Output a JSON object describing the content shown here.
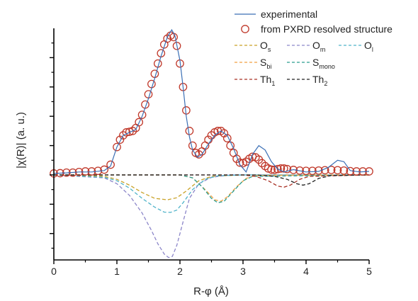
{
  "chart_data": {
    "type": "line",
    "title": "",
    "xlabel": "R-φ (Å)",
    "ylabel": "|χ(R)| (a. u.)",
    "xlim": [
      0,
      5
    ],
    "ylim": [
      -2.9,
      5.0
    ],
    "x_ticks": [
      "0",
      "1",
      "2",
      "3",
      "4",
      "5"
    ],
    "y_ticks_labeled": false,
    "grid": false,
    "legend_position": "top-right",
    "series": [
      {
        "name": "experimental",
        "style": "solid",
        "color": "#3b6fb5",
        "points": [
          [
            0,
            0.05
          ],
          [
            0.2,
            0.07
          ],
          [
            0.4,
            0.1
          ],
          [
            0.6,
            0.1
          ],
          [
            0.8,
            0.15
          ],
          [
            0.9,
            0.3
          ],
          [
            1.0,
            0.95
          ],
          [
            1.1,
            1.35
          ],
          [
            1.2,
            1.45
          ],
          [
            1.3,
            1.55
          ],
          [
            1.4,
            2.0
          ],
          [
            1.5,
            2.6
          ],
          [
            1.6,
            3.3
          ],
          [
            1.7,
            4.05
          ],
          [
            1.8,
            4.7
          ],
          [
            1.87,
            4.95
          ],
          [
            1.92,
            4.75
          ],
          [
            2.0,
            3.9
          ],
          [
            2.05,
            3.0
          ],
          [
            2.1,
            2.0
          ],
          [
            2.15,
            1.3
          ],
          [
            2.2,
            0.85
          ],
          [
            2.28,
            0.6
          ],
          [
            2.35,
            0.7
          ],
          [
            2.45,
            1.05
          ],
          [
            2.55,
            1.35
          ],
          [
            2.65,
            1.5
          ],
          [
            2.75,
            1.35
          ],
          [
            2.85,
            0.9
          ],
          [
            2.95,
            0.35
          ],
          [
            3.05,
            0.1
          ],
          [
            3.15,
            0.7
          ],
          [
            3.25,
            1.0
          ],
          [
            3.35,
            0.85
          ],
          [
            3.45,
            0.45
          ],
          [
            3.55,
            0.2
          ],
          [
            3.65,
            0.1
          ],
          [
            3.8,
            0.18
          ],
          [
            4.0,
            0.1
          ],
          [
            4.2,
            0.12
          ],
          [
            4.35,
            0.25
          ],
          [
            4.5,
            0.5
          ],
          [
            4.6,
            0.45
          ],
          [
            4.7,
            0.15
          ],
          [
            4.85,
            0.1
          ],
          [
            5.0,
            0.12
          ]
        ]
      },
      {
        "name": "from PXRD resolved structure",
        "style": "markers",
        "marker": "open-circle",
        "color": "#c0392b",
        "points": [
          [
            0.0,
            0.05
          ],
          [
            0.1,
            0.06
          ],
          [
            0.2,
            0.08
          ],
          [
            0.3,
            0.08
          ],
          [
            0.4,
            0.1
          ],
          [
            0.5,
            0.12
          ],
          [
            0.6,
            0.12
          ],
          [
            0.7,
            0.14
          ],
          [
            0.8,
            0.18
          ],
          [
            0.9,
            0.35
          ],
          [
            1.0,
            0.95
          ],
          [
            1.05,
            1.2
          ],
          [
            1.1,
            1.35
          ],
          [
            1.15,
            1.45
          ],
          [
            1.2,
            1.47
          ],
          [
            1.25,
            1.5
          ],
          [
            1.3,
            1.6
          ],
          [
            1.35,
            1.8
          ],
          [
            1.4,
            2.05
          ],
          [
            1.45,
            2.4
          ],
          [
            1.5,
            2.75
          ],
          [
            1.55,
            3.1
          ],
          [
            1.6,
            3.45
          ],
          [
            1.65,
            3.8
          ],
          [
            1.7,
            4.15
          ],
          [
            1.75,
            4.45
          ],
          [
            1.8,
            4.65
          ],
          [
            1.85,
            4.75
          ],
          [
            1.9,
            4.7
          ],
          [
            1.95,
            4.4
          ],
          [
            2.0,
            3.8
          ],
          [
            2.05,
            3.0
          ],
          [
            2.1,
            2.2
          ],
          [
            2.15,
            1.5
          ],
          [
            2.2,
            1.0
          ],
          [
            2.25,
            0.75
          ],
          [
            2.3,
            0.7
          ],
          [
            2.35,
            0.8
          ],
          [
            2.4,
            1.0
          ],
          [
            2.45,
            1.2
          ],
          [
            2.5,
            1.35
          ],
          [
            2.55,
            1.45
          ],
          [
            2.6,
            1.5
          ],
          [
            2.65,
            1.5
          ],
          [
            2.7,
            1.42
          ],
          [
            2.75,
            1.25
          ],
          [
            2.8,
            1.0
          ],
          [
            2.85,
            0.75
          ],
          [
            2.9,
            0.55
          ],
          [
            2.95,
            0.42
          ],
          [
            3.0,
            0.4
          ],
          [
            3.05,
            0.45
          ],
          [
            3.1,
            0.55
          ],
          [
            3.15,
            0.62
          ],
          [
            3.2,
            0.6
          ],
          [
            3.25,
            0.52
          ],
          [
            3.3,
            0.4
          ],
          [
            3.35,
            0.3
          ],
          [
            3.4,
            0.22
          ],
          [
            3.45,
            0.18
          ],
          [
            3.5,
            0.17
          ],
          [
            3.55,
            0.2
          ],
          [
            3.6,
            0.22
          ],
          [
            3.65,
            0.22
          ],
          [
            3.7,
            0.2
          ],
          [
            3.8,
            0.17
          ],
          [
            3.9,
            0.15
          ],
          [
            4.0,
            0.14
          ],
          [
            4.1,
            0.14
          ],
          [
            4.2,
            0.15
          ],
          [
            4.3,
            0.16
          ],
          [
            4.4,
            0.17
          ],
          [
            4.5,
            0.16
          ],
          [
            4.6,
            0.15
          ],
          [
            4.7,
            0.13
          ],
          [
            4.8,
            0.12
          ],
          [
            4.9,
            0.12
          ],
          [
            5.0,
            0.12
          ]
        ]
      },
      {
        "name": "Os",
        "label_main": "O",
        "label_sub": "s",
        "style": "dashed",
        "color": "#c9a227",
        "points": [
          [
            0,
            0
          ],
          [
            0.8,
            -0.05
          ],
          [
            1.0,
            -0.15
          ],
          [
            1.2,
            -0.35
          ],
          [
            1.4,
            -0.6
          ],
          [
            1.6,
            -0.8
          ],
          [
            1.8,
            -0.85
          ],
          [
            1.95,
            -0.78
          ],
          [
            2.1,
            -0.55
          ],
          [
            2.3,
            -0.2
          ],
          [
            2.5,
            -0.05
          ],
          [
            3.0,
            0
          ],
          [
            5.0,
            0
          ]
        ]
      },
      {
        "name": "Om",
        "label_main": "O",
        "label_sub": "m",
        "style": "dashed",
        "color": "#8c86c9",
        "points": [
          [
            0,
            0
          ],
          [
            0.8,
            -0.1
          ],
          [
            1.0,
            -0.3
          ],
          [
            1.2,
            -0.7
          ],
          [
            1.4,
            -1.3
          ],
          [
            1.55,
            -1.9
          ],
          [
            1.65,
            -2.35
          ],
          [
            1.75,
            -2.7
          ],
          [
            1.82,
            -2.82
          ],
          [
            1.88,
            -2.78
          ],
          [
            1.95,
            -2.4
          ],
          [
            2.05,
            -1.6
          ],
          [
            2.15,
            -0.8
          ],
          [
            2.3,
            -0.3
          ],
          [
            2.5,
            -0.08
          ],
          [
            2.8,
            0
          ],
          [
            5.0,
            0
          ]
        ]
      },
      {
        "name": "Ol",
        "label_main": "O",
        "label_sub": "l",
        "style": "dashed",
        "color": "#4fb3c9",
        "points": [
          [
            0,
            0
          ],
          [
            0.8,
            -0.08
          ],
          [
            1.0,
            -0.2
          ],
          [
            1.2,
            -0.45
          ],
          [
            1.4,
            -0.8
          ],
          [
            1.6,
            -1.1
          ],
          [
            1.75,
            -1.27
          ],
          [
            1.85,
            -1.28
          ],
          [
            1.95,
            -1.2
          ],
          [
            2.05,
            -0.95
          ],
          [
            2.2,
            -0.5
          ],
          [
            2.4,
            -0.15
          ],
          [
            2.6,
            -0.03
          ],
          [
            3.0,
            0
          ],
          [
            5.0,
            0
          ]
        ]
      },
      {
        "name": "Sbi",
        "label_main": "S",
        "label_sub": "bi",
        "style": "dashed",
        "color": "#f0a040",
        "points": [
          [
            0,
            0
          ],
          [
            2.0,
            0
          ],
          [
            2.2,
            -0.1
          ],
          [
            2.4,
            -0.5
          ],
          [
            2.55,
            -0.85
          ],
          [
            2.65,
            -0.9
          ],
          [
            2.75,
            -0.75
          ],
          [
            2.9,
            -0.4
          ],
          [
            3.05,
            -0.12
          ],
          [
            3.2,
            -0.02
          ],
          [
            5.0,
            0
          ]
        ]
      },
      {
        "name": "Smono",
        "label_main": "S",
        "label_sub": "mono",
        "style": "dashed",
        "color": "#2a9d8f",
        "points": [
          [
            0,
            0
          ],
          [
            2.0,
            0
          ],
          [
            2.2,
            -0.1
          ],
          [
            2.35,
            -0.4
          ],
          [
            2.5,
            -0.8
          ],
          [
            2.6,
            -0.95
          ],
          [
            2.7,
            -0.9
          ],
          [
            2.85,
            -0.55
          ],
          [
            3.0,
            -0.2
          ],
          [
            3.15,
            -0.05
          ],
          [
            5.0,
            0
          ]
        ]
      },
      {
        "name": "Th1",
        "label_main": "Th",
        "label_sub": "1",
        "style": "dashed",
        "color": "#a93226",
        "points": [
          [
            0,
            0
          ],
          [
            3.0,
            0
          ],
          [
            3.2,
            -0.05
          ],
          [
            3.4,
            -0.2
          ],
          [
            3.55,
            -0.38
          ],
          [
            3.65,
            -0.42
          ],
          [
            3.75,
            -0.35
          ],
          [
            3.9,
            -0.15
          ],
          [
            4.05,
            -0.05
          ],
          [
            5.0,
            0
          ]
        ]
      },
      {
        "name": "Th2",
        "label_main": "Th",
        "label_sub": "2",
        "style": "dashed",
        "color": "#222222",
        "points": [
          [
            0,
            0
          ],
          [
            3.2,
            0
          ],
          [
            3.5,
            -0.05
          ],
          [
            3.7,
            -0.15
          ],
          [
            3.85,
            -0.3
          ],
          [
            3.95,
            -0.35
          ],
          [
            4.05,
            -0.3
          ],
          [
            4.2,
            -0.12
          ],
          [
            4.4,
            -0.02
          ],
          [
            5.0,
            0
          ]
        ]
      }
    ]
  }
}
